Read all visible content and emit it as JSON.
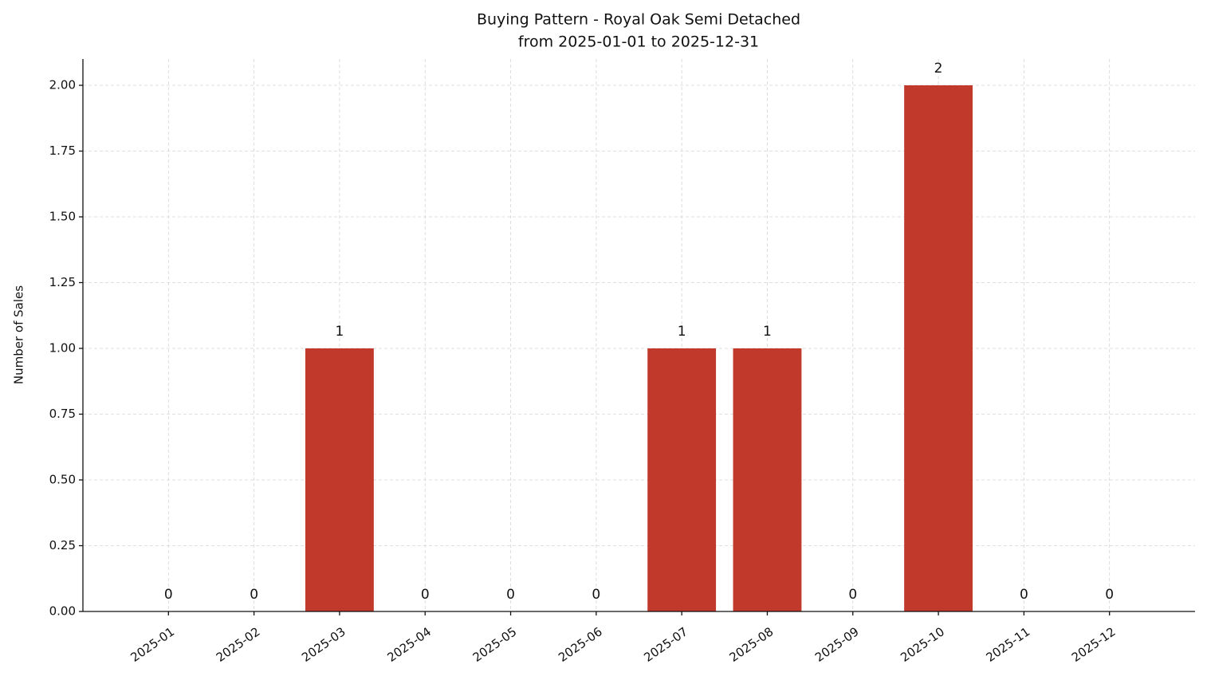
{
  "chart_data": {
    "type": "bar",
    "title": "Buying Pattern - Royal Oak Semi Detached",
    "subtitle": "from 2025-01-01 to 2025-12-31",
    "y_label": "Number of Sales",
    "categories": [
      "2025-01",
      "2025-02",
      "2025-03",
      "2025-04",
      "2025-05",
      "2025-06",
      "2025-07",
      "2025-08",
      "2025-09",
      "2025-10",
      "2025-11",
      "2025-12"
    ],
    "values": [
      0,
      0,
      1,
      0,
      0,
      0,
      1,
      1,
      0,
      2,
      0,
      0
    ],
    "color": "#c0392b",
    "ylim": [
      0,
      2.1
    ],
    "yticks": [
      {
        "value": 0,
        "label": "0.00"
      },
      {
        "value": 0.25,
        "label": "0.25"
      },
      {
        "value": 0.5,
        "label": "0.50"
      },
      {
        "value": 0.75,
        "label": "0.75"
      },
      {
        "value": 1,
        "label": "1.00"
      },
      {
        "value": 1.25,
        "label": "1.25"
      },
      {
        "value": 1.5,
        "label": "1.50"
      },
      {
        "value": 1.75,
        "label": "1.75"
      },
      {
        "value": 2,
        "label": "2.00"
      }
    ],
    "grid": true
  }
}
